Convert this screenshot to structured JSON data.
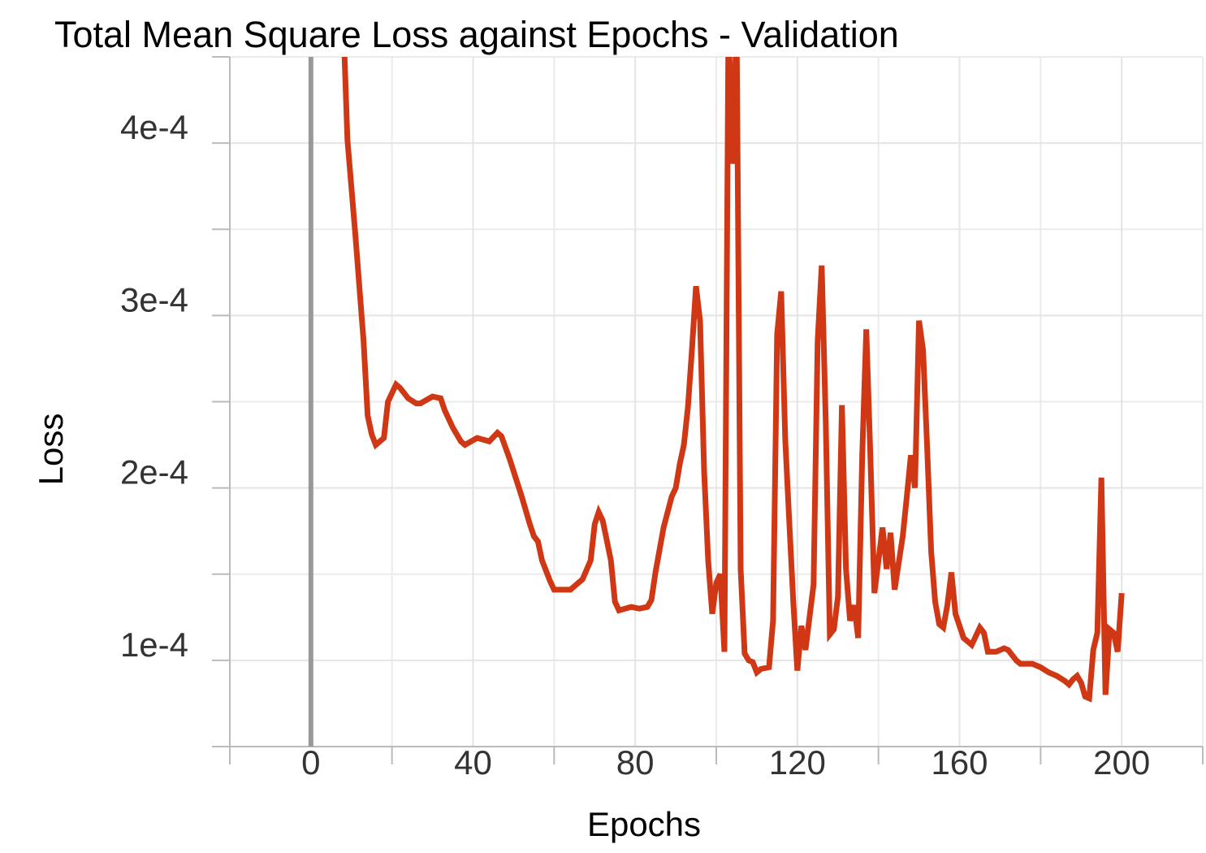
{
  "chart_data": {
    "type": "line",
    "title": "Total Mean Square Loss against Epochs - Validation",
    "x_label": "Epochs",
    "y_label": "Loss",
    "x": [
      8,
      9,
      11,
      13,
      14,
      15,
      16,
      18,
      19,
      21,
      22,
      24,
      26,
      27,
      30,
      32,
      33,
      35,
      37,
      38,
      41,
      44,
      46,
      47,
      49,
      52,
      54,
      55,
      56,
      57,
      59,
      60,
      64,
      65,
      67,
      69,
      70,
      71,
      72,
      74,
      75,
      76,
      79,
      81,
      83,
      84,
      85,
      87,
      89,
      90,
      91,
      92,
      93,
      94,
      95,
      96,
      97,
      98,
      99,
      100,
      101,
      102,
      103,
      104,
      105,
      106,
      107,
      108,
      109,
      110,
      111,
      113,
      114,
      115,
      116,
      117,
      118,
      119,
      120,
      121,
      122,
      123,
      124,
      125,
      126,
      127,
      128,
      129,
      130,
      131,
      132,
      133,
      134,
      135,
      136,
      137,
      138,
      139,
      140,
      141,
      142,
      143,
      144,
      146,
      147,
      148,
      149,
      150,
      151,
      152,
      153,
      154,
      155,
      156,
      157,
      158,
      159,
      161,
      163,
      165,
      166,
      167,
      169,
      171,
      172,
      174,
      175,
      178,
      180,
      182,
      184,
      186,
      187,
      188,
      189,
      190,
      191,
      192,
      193,
      194,
      195,
      196,
      197,
      198,
      199,
      200
    ],
    "series": [
      {
        "name": "Validation",
        "color": "#d03714",
        "values": [
          0.00047,
          0.000402,
          0.000346,
          0.000285,
          0.000242,
          0.000231,
          0.000225,
          0.000229,
          0.00025,
          0.00026,
          0.000258,
          0.000252,
          0.000249,
          0.000249,
          0.000253,
          0.000252,
          0.000245,
          0.000235,
          0.000227,
          0.000225,
          0.000229,
          0.000227,
          0.000232,
          0.00023,
          0.000217,
          0.000195,
          0.000179,
          0.000172,
          0.000169,
          0.000158,
          0.000146,
          0.000141,
          0.000141,
          0.000143,
          0.000147,
          0.000158,
          0.000179,
          0.000186,
          0.000181,
          0.000158,
          0.000134,
          0.000129,
          0.000131,
          0.00013,
          0.000131,
          0.000135,
          0.000151,
          0.000177,
          0.000195,
          0.0002,
          0.000214,
          0.000225,
          0.000247,
          0.00028,
          0.000317,
          0.000297,
          0.00021,
          0.000158,
          0.000127,
          0.000145,
          0.00015,
          0.000105,
          0.00047,
          0.000388,
          0.00047,
          0.000153,
          0.000104,
          0.0001,
          9.9e-05,
          9.3e-05,
          9.5e-05,
          9.6e-05,
          0.000123,
          0.000289,
          0.000314,
          0.000228,
          0.000181,
          0.000134,
          9.4e-05,
          0.00012,
          0.000106,
          0.000125,
          0.000144,
          0.000285,
          0.000329,
          0.000238,
          0.000115,
          0.000118,
          0.000137,
          0.000248,
          0.000153,
          0.000123,
          0.000132,
          0.000113,
          0.000219,
          0.000292,
          0.000219,
          0.000139,
          0.000158,
          0.000177,
          0.000153,
          0.000174,
          0.000141,
          0.000172,
          0.000195,
          0.000219,
          0.0002,
          0.000297,
          0.00028,
          0.000224,
          0.000163,
          0.000134,
          0.000121,
          0.000119,
          0.000132,
          0.000151,
          0.000127,
          0.000113,
          0.000109,
          0.000119,
          0.000116,
          0.000105,
          0.000105,
          0.000107,
          0.000106,
          0.0001,
          9.8e-05,
          9.8e-05,
          9.6e-05,
          9.3e-05,
          9.1e-05,
          8.8e-05,
          8.6e-05,
          8.9e-05,
          9.1e-05,
          8.7e-05,
          7.9e-05,
          7.8e-05,
          0.000106,
          0.000116,
          0.000206,
          8e-05,
          0.000118,
          0.000116,
          0.000105,
          0.000139
        ]
      }
    ],
    "xlim": [
      -20,
      220
    ],
    "xticks": [
      0,
      40,
      80,
      120,
      160,
      200
    ],
    "ylim": [
      5e-05,
      0.00045
    ],
    "yticks": [
      {
        "value": 0.0001,
        "label": "1e-4"
      },
      {
        "value": 0.0002,
        "label": "2e-4"
      },
      {
        "value": 0.0003,
        "label": "3e-4"
      },
      {
        "value": 0.0004,
        "label": "4e-4"
      }
    ],
    "grid": true
  }
}
